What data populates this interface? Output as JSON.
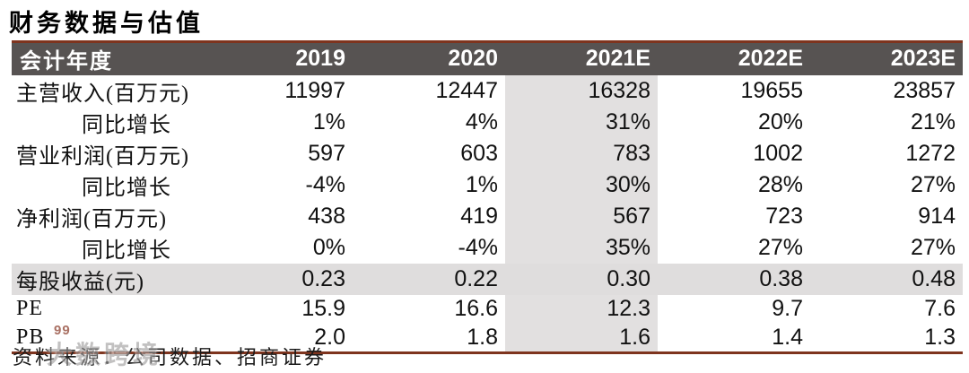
{
  "title": "财务数据与估值",
  "table": {
    "header": {
      "label": "会计年度",
      "years": [
        "2019",
        "2020",
        "2021E",
        "2022E",
        "2023E"
      ]
    },
    "highlight_column": "2021E",
    "rows": [
      {
        "label": "主营收入(百万元)",
        "indent": false,
        "highlight": false,
        "values": [
          "11997",
          "12447",
          "16328",
          "19655",
          "23857"
        ]
      },
      {
        "label": "同比增长",
        "indent": true,
        "highlight": false,
        "values": [
          "1%",
          "4%",
          "31%",
          "20%",
          "21%"
        ]
      },
      {
        "label": "营业利润(百万元)",
        "indent": false,
        "highlight": false,
        "values": [
          "597",
          "603",
          "783",
          "1002",
          "1272"
        ]
      },
      {
        "label": "同比增长",
        "indent": true,
        "highlight": false,
        "values": [
          "-4%",
          "1%",
          "30%",
          "28%",
          "27%"
        ]
      },
      {
        "label": "净利润(百万元)",
        "indent": false,
        "highlight": false,
        "values": [
          "438",
          "419",
          "567",
          "723",
          "914"
        ]
      },
      {
        "label": "同比增长",
        "indent": true,
        "highlight": false,
        "values": [
          "0%",
          "-4%",
          "35%",
          "27%",
          "27%"
        ]
      },
      {
        "label": "每股收益(元)",
        "indent": false,
        "highlight": true,
        "values": [
          "0.23",
          "0.22",
          "0.30",
          "0.38",
          "0.48"
        ]
      },
      {
        "label": "PE",
        "indent": false,
        "highlight": false,
        "values": [
          "15.9",
          "16.6",
          "12.3",
          "9.7",
          "7.6"
        ]
      },
      {
        "label": "PB",
        "indent": false,
        "highlight": false,
        "values": [
          "2.0",
          "1.8",
          "1.6",
          "1.4",
          "1.3"
        ]
      }
    ]
  },
  "footer": {
    "source_text": "资料来源：公司数据、招商证券"
  },
  "watermark": {
    "badge": "99",
    "text": "大数跨境"
  },
  "colors": {
    "header_bg": "#575352",
    "header_text": "#ffffff",
    "accent_line": "#7e341e",
    "column_highlight": "#e2e0e0",
    "row_highlight": "#dfdddd"
  }
}
